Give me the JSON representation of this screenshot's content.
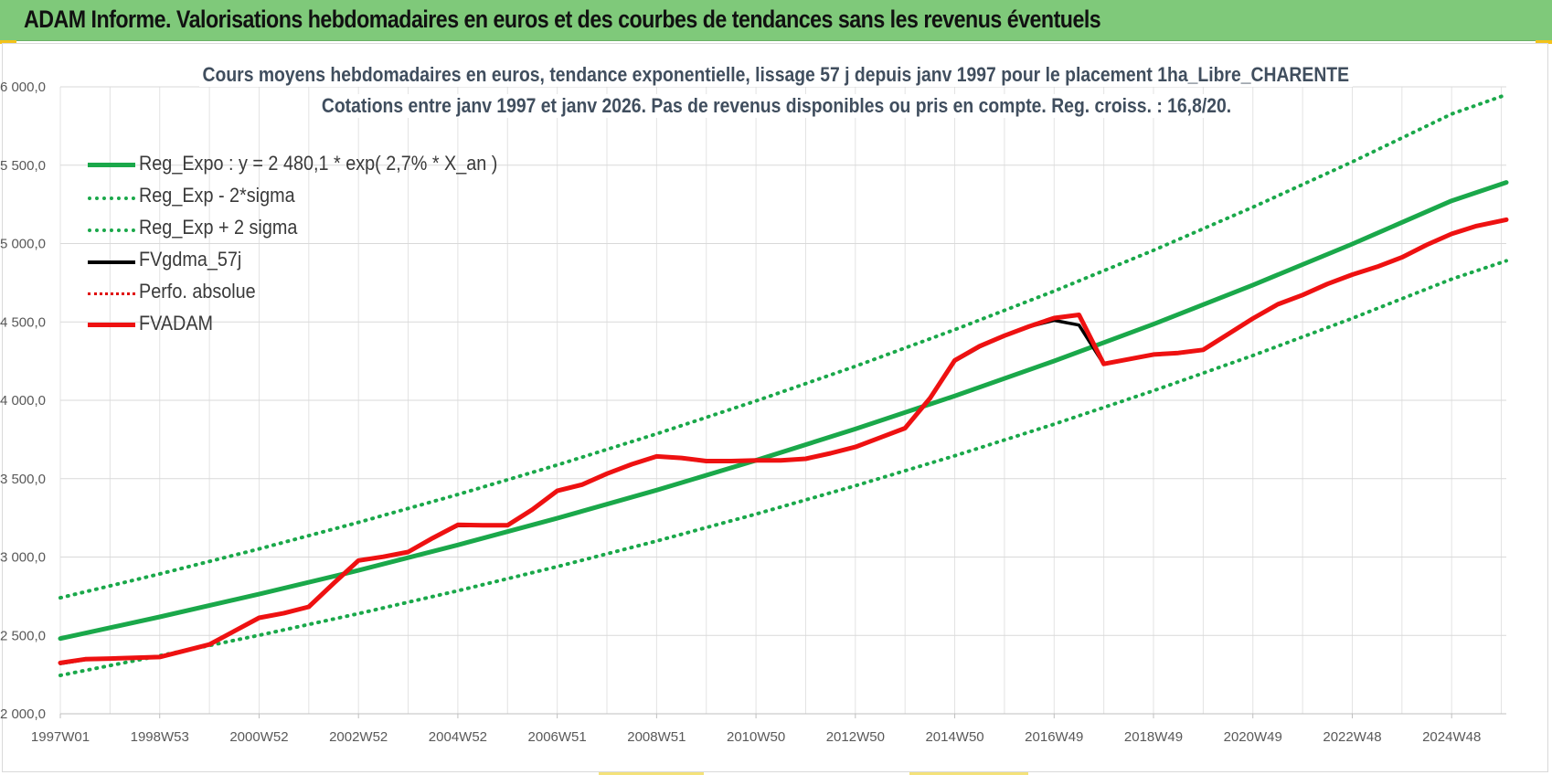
{
  "banner": {
    "title": "ADAM Informe. Valorisations hebdomadaires en euros et des courbes de tendances sans les revenus éventuels"
  },
  "colors": {
    "banner_bg": "#7fc97a",
    "reg_expo": "#1aa84a",
    "bands": "#1aa84a",
    "fvgdma": "#000000",
    "perf_absolue": "#e00000",
    "fvadam": "#ee1111",
    "grid": "#d9d9d9",
    "title_text": "#404e5e"
  },
  "chart_data": {
    "type": "line",
    "title": "Cours moyens hebdomadaires en euros, tendance exponentielle, lissage 57 j depuis janv 1997  pour le placement 1ha_Libre_CHARENTE",
    "subtitle": "Cotations entre janv 1997 et janv 2026. Pas de revenus disponibles ou pris en compte. Reg. croiss. : 16,8/20.",
    "xlabel": "",
    "ylabel": "",
    "x_range": [
      1997.0,
      2026.1
    ],
    "ylim": [
      2000,
      6000
    ],
    "y_ticks": [
      2000,
      2500,
      3000,
      3500,
      4000,
      4500,
      5000,
      5500,
      6000
    ],
    "y_tick_labels": [
      "2 000,0",
      "2 500,0",
      "3 000,0",
      "3 500,0",
      "4 000,0",
      "4 500,0",
      "5 000,0",
      "5 500,0",
      "6 000,0"
    ],
    "x_ticks": [
      1997.0,
      1999.0,
      2001.0,
      2003.0,
      2005.0,
      2007.0,
      2009.0,
      2011.0,
      2013.0,
      2015.0,
      2017.0,
      2019.0,
      2021.0,
      2023.0,
      2025.0
    ],
    "x_tick_labels": [
      "1997W01",
      "1998W53",
      "2000W52",
      "2002W52",
      "2004W52",
      "2006W51",
      "2008W51",
      "2010W50",
      "2012W50",
      "2014W50",
      "2016W49",
      "2018W49",
      "2020W49",
      "2022W48",
      "2024W48"
    ],
    "grid": true,
    "legend_position": "top-left",
    "series": [
      {
        "name": "Reg_Expo : y = 2 480,1 * exp( 2,7% *  X_an )",
        "style": "solid-thick",
        "color": "#1aa84a",
        "x": [
          1997.0,
          1999.0,
          2001.0,
          2003.0,
          2005.0,
          2007.0,
          2009.0,
          2011.0,
          2013.0,
          2015.0,
          2017.0,
          2019.0,
          2021.0,
          2023.0,
          2025.0,
          2026.1
        ],
        "y": [
          2480,
          2618,
          2763,
          2915,
          3077,
          3247,
          3427,
          3617,
          3817,
          4028,
          4251,
          4486,
          4735,
          4997,
          5273,
          5390
        ]
      },
      {
        "name": "Reg_Exp - 2*sigma",
        "style": "dotted",
        "color": "#1aa84a",
        "x": [
          1997.0,
          1999.0,
          2001.0,
          2003.0,
          2005.0,
          2007.0,
          2009.0,
          2011.0,
          2013.0,
          2015.0,
          2017.0,
          2019.0,
          2021.0,
          2023.0,
          2025.0,
          2026.1
        ],
        "y": [
          2245,
          2370,
          2501,
          2639,
          2785,
          2939,
          3102,
          3274,
          3455,
          3646,
          3848,
          4061,
          4286,
          4523,
          4773,
          4890
        ]
      },
      {
        "name": "Reg_Exp + 2 sigma",
        "style": "dotted",
        "color": "#1aa84a",
        "x": [
          1997.0,
          1999.0,
          2001.0,
          2003.0,
          2005.0,
          2007.0,
          2009.0,
          2011.0,
          2013.0,
          2015.0,
          2017.0,
          2019.0,
          2021.0,
          2023.0,
          2025.0,
          2026.1
        ],
        "y": [
          2740,
          2892,
          3052,
          3221,
          3399,
          3587,
          3786,
          3996,
          4217,
          4451,
          4697,
          4957,
          5232,
          5521,
          5827,
          5950
        ]
      },
      {
        "name": "FVgdma_57j",
        "style": "solid",
        "color": "#000000",
        "x": [
          1997.0,
          1997.5,
          1998.0,
          1999.0,
          2000.0,
          2001.0,
          2001.5,
          2002.0,
          2002.5,
          2003.0,
          2003.5,
          2004.0,
          2004.5,
          2005.0,
          2005.5,
          2006.0,
          2006.5,
          2007.0,
          2007.5,
          2008.0,
          2008.5,
          2009.0,
          2009.5,
          2010.0,
          2010.5,
          2011.0,
          2011.5,
          2012.0,
          2012.5,
          2013.0,
          2013.5,
          2014.0,
          2014.5,
          2015.0,
          2015.5,
          2016.0,
          2016.5,
          2017.0,
          2017.5,
          2018.0,
          2018.5,
          2019.0,
          2019.5,
          2020.0,
          2020.5,
          2021.0,
          2021.5,
          2022.0,
          2022.5,
          2023.0,
          2023.5,
          2024.0,
          2024.5,
          2025.0,
          2025.5,
          2026.1
        ],
        "y": [
          2320,
          2345,
          2350,
          2360,
          2440,
          2610,
          2640,
          2680,
          2830,
          2975,
          3000,
          3030,
          3120,
          3200,
          3200,
          3200,
          3300,
          3420,
          3460,
          3530,
          3590,
          3640,
          3630,
          3610,
          3610,
          3615,
          3615,
          3625,
          3660,
          3700,
          3760,
          3820,
          4010,
          4250,
          4340,
          4410,
          4470,
          4510,
          4480,
          4230,
          4260,
          4290,
          4300,
          4320,
          4420,
          4520,
          4610,
          4670,
          4740,
          4800,
          4850,
          4910,
          4990,
          5060,
          5110,
          5150
        ]
      },
      {
        "name": "Perfo. absolue",
        "style": "dotted",
        "color": "#e00000",
        "x": [],
        "y": []
      },
      {
        "name": "FVADAM",
        "style": "solid-thick",
        "color": "#ee1111",
        "x": [
          1997.0,
          1997.5,
          1998.0,
          1999.0,
          2000.0,
          2001.0,
          2001.5,
          2002.0,
          2002.5,
          2003.0,
          2003.5,
          2004.0,
          2004.5,
          2005.0,
          2005.5,
          2006.0,
          2006.5,
          2007.0,
          2007.5,
          2008.0,
          2008.5,
          2009.0,
          2009.5,
          2010.0,
          2010.5,
          2011.0,
          2011.5,
          2012.0,
          2012.5,
          2013.0,
          2013.5,
          2014.0,
          2014.5,
          2015.0,
          2015.5,
          2016.0,
          2016.5,
          2017.0,
          2017.5,
          2018.0,
          2018.5,
          2019.0,
          2019.5,
          2020.0,
          2020.5,
          2021.0,
          2021.5,
          2022.0,
          2022.5,
          2023.0,
          2023.5,
          2024.0,
          2024.5,
          2025.0,
          2025.5,
          2026.1
        ],
        "y": [
          2325,
          2348,
          2352,
          2362,
          2442,
          2612,
          2642,
          2682,
          2832,
          2978,
          3002,
          3032,
          3122,
          3205,
          3203,
          3203,
          3303,
          3422,
          3462,
          3532,
          3592,
          3642,
          3632,
          3612,
          3612,
          3617,
          3617,
          3627,
          3662,
          3702,
          3762,
          3822,
          4012,
          4255,
          4345,
          4412,
          4472,
          4525,
          4545,
          4232,
          4262,
          4292,
          4302,
          4322,
          4422,
          4522,
          4612,
          4672,
          4742,
          4802,
          4852,
          4912,
          4992,
          5062,
          5112,
          5152
        ]
      }
    ]
  }
}
